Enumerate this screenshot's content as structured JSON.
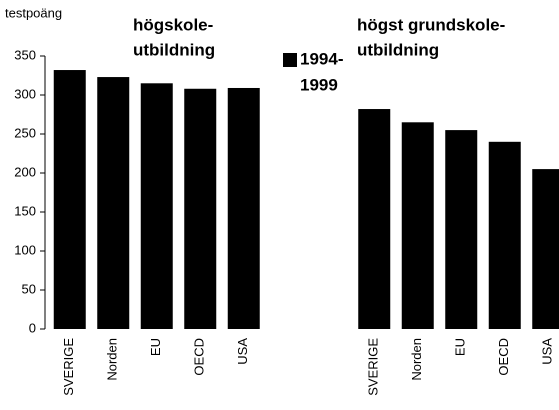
{
  "chart_data": {
    "type": "bar",
    "y_label": "testpoäng",
    "categories": [
      "SVERIGE",
      "Norden",
      "EU",
      "OECD",
      "USA",
      null,
      null,
      "SVERIGE",
      "Norden",
      "EU",
      "OECD",
      "USA"
    ],
    "values": [
      332,
      323,
      315,
      308,
      309,
      null,
      null,
      282,
      265,
      255,
      240,
      205
    ],
    "color": "#000000",
    "ylim": [
      0,
      350
    ],
    "yticks": [
      0,
      50,
      100,
      150,
      200,
      250,
      300,
      350
    ],
    "group_labels": [
      [
        "högskole-",
        "utbildning"
      ],
      [
        "högst grundskole-",
        "utbildning"
      ]
    ],
    "legend": [
      "1994-",
      "1999"
    ]
  }
}
